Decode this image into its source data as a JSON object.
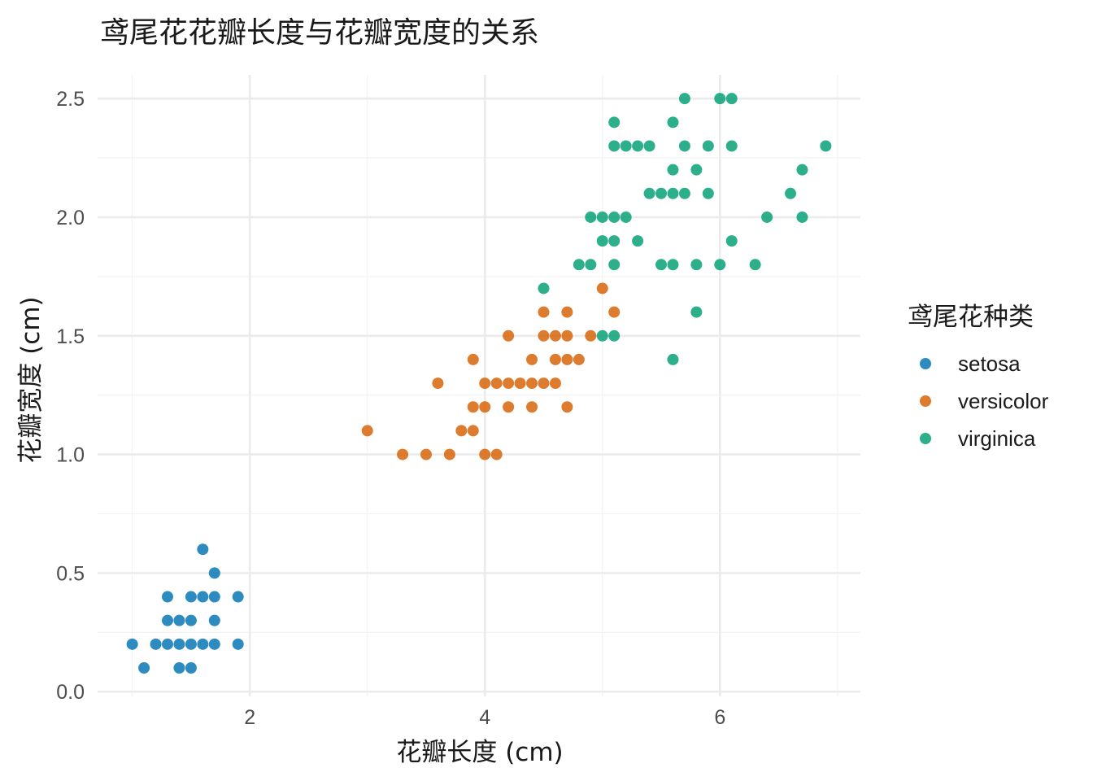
{
  "chart_data": {
    "type": "scatter",
    "title": "鸢尾花花瓣长度与花瓣宽度的关系",
    "xlabel": "花瓣长度 (cm)",
    "ylabel": "花瓣宽度 (cm)",
    "xlim": [
      0.705,
      7.195
    ],
    "ylim": [
      -0.02,
      2.6
    ],
    "x_ticks": [
      2,
      4,
      6
    ],
    "x_tick_labels": [
      "2",
      "4",
      "6"
    ],
    "y_ticks": [
      0,
      0.5,
      1,
      1.5,
      2,
      2.5
    ],
    "y_tick_labels": [
      "0.0",
      "0.5",
      "1.0",
      "1.5",
      "2.0",
      "2.5"
    ],
    "grid": true,
    "legend": {
      "title": "鸢尾花种类",
      "position": "right"
    },
    "series": [
      {
        "name": "setosa",
        "color": "#0072B2",
        "points": [
          [
            1.0,
            0.2
          ],
          [
            1.1,
            0.1
          ],
          [
            1.2,
            0.2
          ],
          [
            1.3,
            0.2
          ],
          [
            1.3,
            0.3
          ],
          [
            1.3,
            0.4
          ],
          [
            1.4,
            0.1
          ],
          [
            1.4,
            0.2
          ],
          [
            1.4,
            0.3
          ],
          [
            1.5,
            0.1
          ],
          [
            1.5,
            0.2
          ],
          [
            1.5,
            0.3
          ],
          [
            1.5,
            0.4
          ],
          [
            1.6,
            0.2
          ],
          [
            1.6,
            0.4
          ],
          [
            1.6,
            0.6
          ],
          [
            1.7,
            0.2
          ],
          [
            1.7,
            0.3
          ],
          [
            1.7,
            0.4
          ],
          [
            1.7,
            0.5
          ],
          [
            1.9,
            0.2
          ],
          [
            1.9,
            0.4
          ]
        ]
      },
      {
        "name": "versicolor",
        "color": "#D55E00",
        "points": [
          [
            3.0,
            1.1
          ],
          [
            3.3,
            1.0
          ],
          [
            3.5,
            1.0
          ],
          [
            3.6,
            1.3
          ],
          [
            3.7,
            1.0
          ],
          [
            3.8,
            1.1
          ],
          [
            3.9,
            1.1
          ],
          [
            3.9,
            1.2
          ],
          [
            3.9,
            1.4
          ],
          [
            4.0,
            1.0
          ],
          [
            4.0,
            1.2
          ],
          [
            4.0,
            1.3
          ],
          [
            4.1,
            1.0
          ],
          [
            4.1,
            1.3
          ],
          [
            4.2,
            1.2
          ],
          [
            4.2,
            1.3
          ],
          [
            4.2,
            1.5
          ],
          [
            4.3,
            1.3
          ],
          [
            4.4,
            1.2
          ],
          [
            4.4,
            1.3
          ],
          [
            4.4,
            1.4
          ],
          [
            4.5,
            1.3
          ],
          [
            4.5,
            1.5
          ],
          [
            4.5,
            1.6
          ],
          [
            4.6,
            1.3
          ],
          [
            4.6,
            1.4
          ],
          [
            4.6,
            1.5
          ],
          [
            4.7,
            1.2
          ],
          [
            4.7,
            1.4
          ],
          [
            4.7,
            1.5
          ],
          [
            4.7,
            1.6
          ],
          [
            4.8,
            1.4
          ],
          [
            4.9,
            1.5
          ],
          [
            5.0,
            1.7
          ],
          [
            5.1,
            1.6
          ]
        ]
      },
      {
        "name": "virginica",
        "color": "#009E73",
        "points": [
          [
            4.5,
            1.7
          ],
          [
            4.8,
            1.8
          ],
          [
            4.9,
            1.8
          ],
          [
            4.9,
            2.0
          ],
          [
            5.0,
            1.5
          ],
          [
            5.0,
            1.9
          ],
          [
            5.0,
            2.0
          ],
          [
            5.1,
            1.5
          ],
          [
            5.1,
            1.8
          ],
          [
            5.1,
            1.9
          ],
          [
            5.1,
            2.0
          ],
          [
            5.1,
            2.3
          ],
          [
            5.1,
            2.4
          ],
          [
            5.2,
            2.0
          ],
          [
            5.2,
            2.3
          ],
          [
            5.3,
            1.9
          ],
          [
            5.3,
            2.3
          ],
          [
            5.4,
            2.1
          ],
          [
            5.4,
            2.3
          ],
          [
            5.5,
            1.8
          ],
          [
            5.5,
            2.1
          ],
          [
            5.6,
            1.4
          ],
          [
            5.6,
            1.8
          ],
          [
            5.6,
            2.1
          ],
          [
            5.6,
            2.2
          ],
          [
            5.6,
            2.4
          ],
          [
            5.7,
            2.1
          ],
          [
            5.7,
            2.3
          ],
          [
            5.7,
            2.5
          ],
          [
            5.8,
            1.6
          ],
          [
            5.8,
            1.8
          ],
          [
            5.8,
            2.2
          ],
          [
            5.9,
            2.1
          ],
          [
            5.9,
            2.3
          ],
          [
            6.0,
            1.8
          ],
          [
            6.0,
            2.5
          ],
          [
            6.1,
            1.9
          ],
          [
            6.1,
            2.3
          ],
          [
            6.1,
            2.5
          ],
          [
            6.3,
            1.8
          ],
          [
            6.4,
            2.0
          ],
          [
            6.6,
            2.1
          ],
          [
            6.7,
            2.0
          ],
          [
            6.7,
            2.2
          ],
          [
            6.9,
            2.3
          ]
        ]
      }
    ]
  }
}
